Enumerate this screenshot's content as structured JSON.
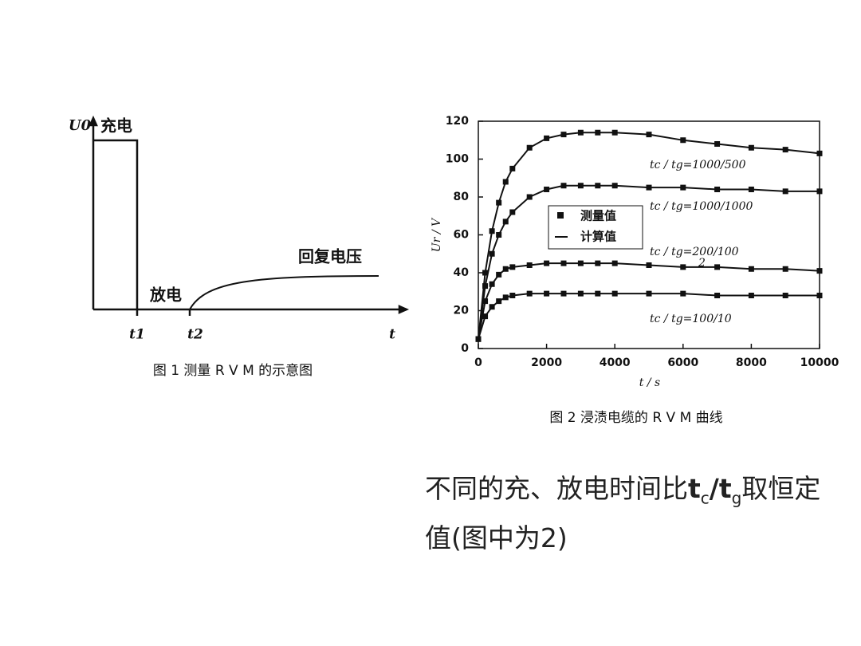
{
  "figure1": {
    "y_label": "U0",
    "charge": "充电",
    "discharge": "放电",
    "recovery": "回复电压",
    "t1": "t1",
    "t2": "t2",
    "t": "t",
    "caption": "图 1   测量 R V M 的示意图"
  },
  "chart_data": {
    "type": "line",
    "x_label": "t / s",
    "y_label": "Ur / V",
    "caption": "图 2   浸渍电缆的 R V M  曲线",
    "x": [
      0,
      200,
      400,
      600,
      800,
      1000,
      1500,
      2000,
      2500,
      3000,
      3500,
      4000,
      5000,
      6000,
      7000,
      8000,
      9000,
      10000
    ],
    "series": [
      {
        "name": "tc / tg=1000/500",
        "color": "#111",
        "values": [
          5,
          40,
          62,
          77,
          88,
          95,
          106,
          111,
          113,
          114,
          114,
          114,
          113,
          110,
          108,
          106,
          105,
          103
        ]
      },
      {
        "name": "tc / tg=1000/1000",
        "color": "#111",
        "values": [
          5,
          33,
          50,
          60,
          67,
          72,
          80,
          84,
          86,
          86,
          86,
          86,
          85,
          85,
          84,
          84,
          83,
          83
        ]
      },
      {
        "name": "tc / tg=200/100",
        "color": "#111",
        "values": [
          5,
          25,
          34,
          39,
          42,
          43,
          44,
          45,
          45,
          45,
          45,
          45,
          44,
          43,
          43,
          42,
          42,
          41
        ]
      },
      {
        "name": "tc / tg=100/10",
        "color": "#111",
        "values": [
          5,
          17,
          22,
          25,
          27,
          28,
          29,
          29,
          29,
          29,
          29,
          29,
          29,
          29,
          28,
          28,
          28,
          28
        ]
      }
    ],
    "legend": {
      "marker": "测量值",
      "line": "计算值"
    },
    "annotation": "2",
    "xlim": [
      0,
      10000
    ],
    "xticks": [
      0,
      2000,
      4000,
      6000,
      8000,
      10000
    ],
    "ylim": [
      0,
      120
    ],
    "yticks": [
      0,
      20,
      40,
      60,
      80,
      100,
      120
    ],
    "grid": false
  },
  "note": {
    "a": "不同的充、放电时间比",
    "t1": "t",
    "s1": "c",
    "slash": "/",
    "t2": "t",
    "s2": "g",
    "b": "取恒定值(图中为2)"
  }
}
